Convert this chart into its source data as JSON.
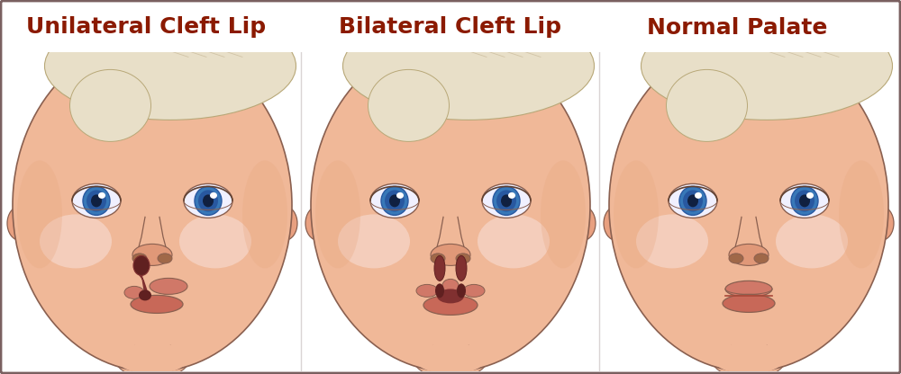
{
  "labels": [
    "Unilateral Cleft Lip",
    "Bilateral Cleft Lip",
    "Normal Palate"
  ],
  "header_bg": "#d4cece",
  "body_bg": "#ffffff",
  "outer_border_color": "#7a6060",
  "label_color": "#8B1A00",
  "label_fontsize": 18,
  "label_fontweight": "bold",
  "fig_width": 10.0,
  "fig_height": 4.16,
  "skin_color": "#f0b898",
  "skin_mid": "#e8a880",
  "skin_dark": "#c87850",
  "skin_light": "#f8d8c0",
  "hair_color": "#e8dfc8",
  "hair_dark": "#c8b898",
  "hair_line": "#b8a878",
  "eye_white": "#f0f0ff",
  "eye_blue": "#3878b8",
  "eye_blue2": "#2858a0",
  "pupil_color": "#102040",
  "eye_reflect": "#c0d8f0",
  "lip_upper": "#d07868",
  "lip_lower": "#c86858",
  "lip_dark": "#a84838",
  "cleft_dark": "#803030",
  "cleft_inner": "#602020",
  "nose_tip": "#e09878",
  "nose_nostril": "#a06848",
  "cheek_highlight": "#f8e0d8",
  "neck_color": "#e8a880",
  "ear_color": "#e8a080",
  "outline": "#8a6050",
  "line_dark": "#604030",
  "divider_color": "#c0b8b8"
}
